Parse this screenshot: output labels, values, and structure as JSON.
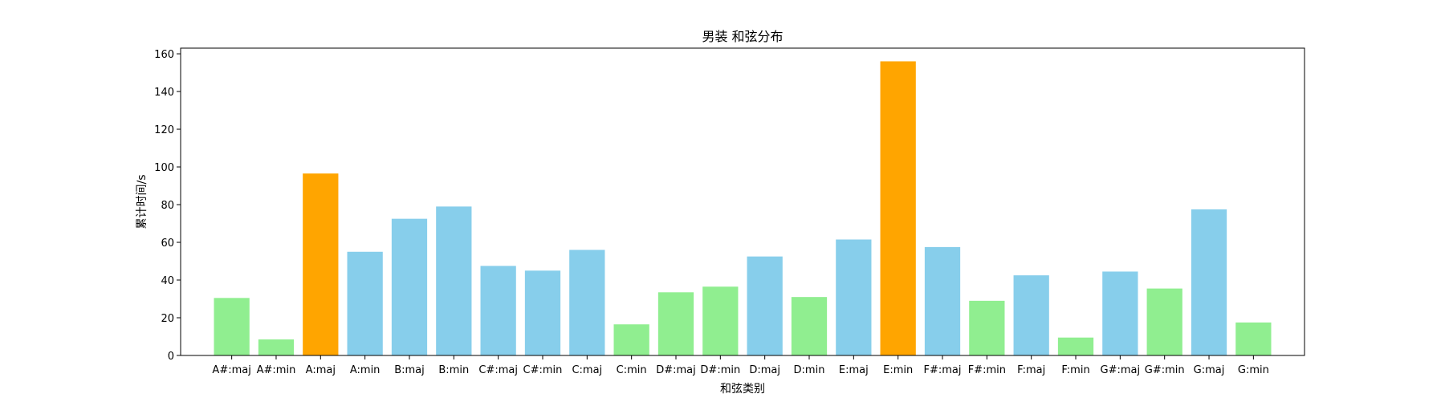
{
  "chart_data": {
    "type": "bar",
    "title": "男装 和弦分布",
    "xlabel": "和弦类别",
    "ylabel": "累计时间/s",
    "ylim": [
      0,
      163
    ],
    "yticks": [
      0,
      20,
      40,
      60,
      80,
      100,
      120,
      140,
      160
    ],
    "grid": false,
    "categories": [
      "A#:maj",
      "A#:min",
      "A:maj",
      "A:min",
      "B:maj",
      "B:min",
      "C#:maj",
      "C#:min",
      "C:maj",
      "C:min",
      "D#:maj",
      "D#:min",
      "D:maj",
      "D:min",
      "E:maj",
      "E:min",
      "F#:maj",
      "F#:min",
      "F:maj",
      "F:min",
      "G#:maj",
      "G#:min",
      "G:maj",
      "G:min"
    ],
    "values": [
      30.5,
      8.5,
      96.5,
      55,
      72.5,
      79,
      47.5,
      45,
      56,
      16.5,
      33.5,
      36.5,
      52.5,
      31,
      61.5,
      156,
      57.5,
      29,
      42.5,
      9.5,
      44.5,
      35.5,
      77.5,
      17.5
    ],
    "colors": [
      "#90EE90",
      "#90EE90",
      "#FFA500",
      "#87CEEB",
      "#87CEEB",
      "#87CEEB",
      "#87CEEB",
      "#87CEEB",
      "#87CEEB",
      "#90EE90",
      "#90EE90",
      "#90EE90",
      "#87CEEB",
      "#90EE90",
      "#87CEEB",
      "#FFA500",
      "#87CEEB",
      "#90EE90",
      "#87CEEB",
      "#90EE90",
      "#87CEEB",
      "#90EE90",
      "#87CEEB",
      "#90EE90"
    ]
  }
}
